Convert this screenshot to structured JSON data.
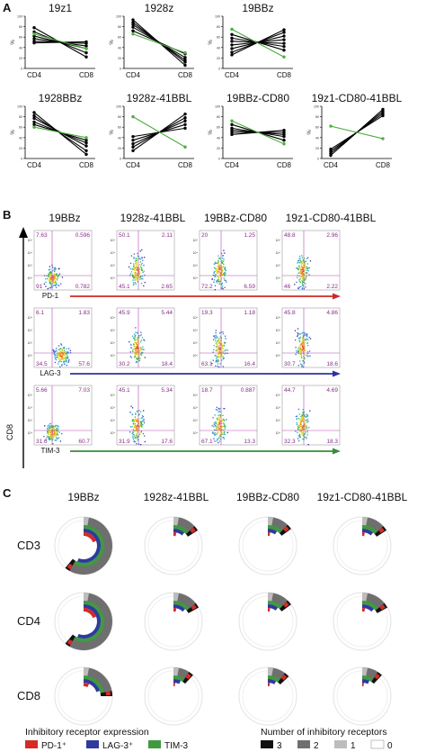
{
  "panel_letters": {
    "a": "A",
    "b": "B",
    "c": "C"
  },
  "panel_a": {
    "x_tick_labels": [
      "CD4",
      "CD8"
    ],
    "y_axis_label": "%",
    "y_tick_labels": [
      "0",
      "20",
      "40",
      "60",
      "80",
      "100"
    ],
    "colors": {
      "black_lines": "#000000",
      "highlight": "#4dae3f"
    }
  },
  "chart_data": [
    {
      "type": "line",
      "title": "19z1",
      "categories": [
        "CD4",
        "CD8"
      ],
      "ylim": [
        0,
        100
      ],
      "ylabel": "%",
      "series": [
        {
          "values": [
            78,
            22
          ]
        },
        {
          "values": [
            70,
            30
          ]
        },
        {
          "values": [
            62,
            38
          ]
        },
        {
          "values": [
            57,
            43
          ]
        },
        {
          "values": [
            52,
            48
          ]
        },
        {
          "values": [
            49,
            51
          ]
        },
        {
          "values": [
            66,
            38
          ],
          "highlight": true
        }
      ]
    },
    {
      "type": "line",
      "title": "1928z",
      "categories": [
        "CD4",
        "CD8"
      ],
      "ylim": [
        0,
        100
      ],
      "ylabel": "%",
      "series": [
        {
          "values": [
            93,
            6
          ]
        },
        {
          "values": [
            88,
            12
          ]
        },
        {
          "values": [
            84,
            16
          ]
        },
        {
          "values": [
            79,
            21
          ]
        },
        {
          "values": [
            72,
            28
          ]
        },
        {
          "values": [
            66,
            30
          ],
          "highlight": true
        }
      ]
    },
    {
      "type": "line",
      "title": "19BBz",
      "categories": [
        "CD4",
        "CD8"
      ],
      "ylim": [
        0,
        100
      ],
      "ylabel": "%",
      "series": [
        {
          "values": [
            65,
            35
          ]
        },
        {
          "values": [
            58,
            42
          ]
        },
        {
          "values": [
            52,
            48
          ]
        },
        {
          "values": [
            45,
            55
          ]
        },
        {
          "values": [
            38,
            62
          ]
        },
        {
          "values": [
            31,
            69
          ]
        },
        {
          "values": [
            26,
            74
          ]
        },
        {
          "values": [
            75,
            22
          ],
          "highlight": true
        }
      ]
    },
    {
      "type": "line",
      "title": "1928BBz",
      "categories": [
        "CD4",
        "CD8"
      ],
      "ylim": [
        0,
        100
      ],
      "ylabel": "%",
      "series": [
        {
          "values": [
            88,
            8
          ]
        },
        {
          "values": [
            82,
            15
          ]
        },
        {
          "values": [
            77,
            24
          ]
        },
        {
          "values": [
            70,
            30
          ]
        },
        {
          "values": [
            65,
            35
          ]
        },
        {
          "values": [
            60,
            40
          ],
          "highlight": true
        }
      ]
    },
    {
      "type": "line",
      "title": "1928z-41BBL",
      "categories": [
        "CD4",
        "CD8"
      ],
      "ylim": [
        0,
        100
      ],
      "ylabel": "%",
      "series": [
        {
          "values": [
            42,
            58
          ]
        },
        {
          "values": [
            35,
            65
          ]
        },
        {
          "values": [
            28,
            72
          ]
        },
        {
          "values": [
            22,
            78
          ]
        },
        {
          "values": [
            15,
            85
          ]
        },
        {
          "values": [
            80,
            22
          ],
          "highlight": true
        }
      ]
    },
    {
      "type": "line",
      "title": "19BBz-CD80",
      "categories": [
        "CD4",
        "CD8"
      ],
      "ylim": [
        0,
        100
      ],
      "ylabel": "%",
      "series": [
        {
          "values": [
            65,
            35
          ]
        },
        {
          "values": [
            58,
            42
          ]
        },
        {
          "values": [
            54,
            46
          ]
        },
        {
          "values": [
            50,
            50
          ]
        },
        {
          "values": [
            46,
            54
          ]
        },
        {
          "values": [
            72,
            28
          ],
          "highlight": true
        }
      ]
    },
    {
      "type": "line",
      "title": "19z1-CD80-41BBL",
      "categories": [
        "CD4",
        "CD8"
      ],
      "ylim": [
        0,
        100
      ],
      "ylabel": "%",
      "series": [
        {
          "values": [
            18,
            82
          ]
        },
        {
          "values": [
            14,
            86
          ]
        },
        {
          "values": [
            10,
            90
          ]
        },
        {
          "values": [
            6,
            94
          ]
        },
        {
          "values": [
            62,
            38
          ],
          "highlight": true
        }
      ]
    }
  ],
  "panel_b": {
    "column_titles": [
      "19BBz",
      "1928z-41BBL",
      "19BBz-CD80",
      "19z1-CD80-41BBL"
    ],
    "y_axis_label": "CD8",
    "rows": [
      {
        "marker": "PD-1",
        "arrow_color": "#cc2b26",
        "quadrants": [
          [
            "7.63",
            "0.596",
            "91",
            "0.782"
          ],
          [
            "50.1",
            "2.11",
            "45.1",
            "2.65"
          ],
          [
            "20",
            "1.25",
            "72.2",
            "6.59"
          ],
          [
            "48.8",
            "2.96",
            "46",
            "2.22"
          ]
        ]
      },
      {
        "marker": "LAG-3",
        "arrow_color": "#2a3599",
        "quadrants": [
          [
            "6.1",
            "1.83",
            "34.5",
            "57.6"
          ],
          [
            "45.9",
            "5.44",
            "30.2",
            "18.4"
          ],
          [
            "19.3",
            "1.18",
            "63.1",
            "16.4"
          ],
          [
            "45.8",
            "4.86",
            "30.7",
            "18.6"
          ]
        ]
      },
      {
        "marker": "TIM-3",
        "arrow_color": "#3a8b3a",
        "quadrants": [
          [
            "5.66",
            "7.03",
            "31.6",
            "60.7"
          ],
          [
            "45.1",
            "5.34",
            "31.9",
            "17.6"
          ],
          [
            "18.7",
            "0.887",
            "67.1",
            "13.3"
          ],
          [
            "44.7",
            "4.69",
            "32.3",
            "18.3"
          ]
        ]
      }
    ],
    "axis_tick_label": "10⁴"
  },
  "panel_c": {
    "column_titles": [
      "19BBz",
      "1928z-41BBL",
      "19BBz-CD80",
      "19z1-CD80-41BBL"
    ],
    "row_labels": [
      "CD3",
      "CD4",
      "CD8"
    ],
    "cells": [
      [
        {
          "sweep": [
            0.58,
            0.56,
            0.55
          ]
        },
        {
          "sweep": [
            0.13,
            0.11,
            0.1
          ]
        },
        {
          "sweep": [
            0.12,
            0.09,
            0.08
          ]
        },
        {
          "sweep": [
            0.13,
            0.11,
            0.09
          ]
        }
      ],
      [
        {
          "sweep": [
            0.58,
            0.56,
            0.55
          ]
        },
        {
          "sweep": [
            0.14,
            0.12,
            0.1
          ]
        },
        {
          "sweep": [
            0.12,
            0.1,
            0.08
          ]
        },
        {
          "sweep": [
            0.14,
            0.12,
            0.1
          ]
        }
      ],
      [
        {
          "sweep": [
            0.22,
            0.2,
            0.19
          ]
        },
        {
          "sweep": [
            0.09,
            0.07,
            0.06
          ]
        },
        {
          "sweep": [
            0.1,
            0.08,
            0.07
          ]
        },
        {
          "sweep": [
            0.09,
            0.07,
            0.06
          ]
        }
      ]
    ],
    "legend_left_title": "Inhibitory receptor expression",
    "legend_left_items": [
      {
        "label": "PD-1⁺",
        "color": "#d42b27"
      },
      {
        "label": "LAG-3⁺",
        "color": "#2e3a9e"
      },
      {
        "label": "TIM-3",
        "color": "#3f9a3f"
      }
    ],
    "legend_right_title": "Number of inhibitory receptors",
    "legend_right_items": [
      {
        "label": "3",
        "color": "#111111"
      },
      {
        "label": "2",
        "color": "#6f6f6f"
      },
      {
        "label": "1",
        "color": "#bdbdbd"
      },
      {
        "label": "0",
        "color": "#ffffff"
      }
    ]
  }
}
